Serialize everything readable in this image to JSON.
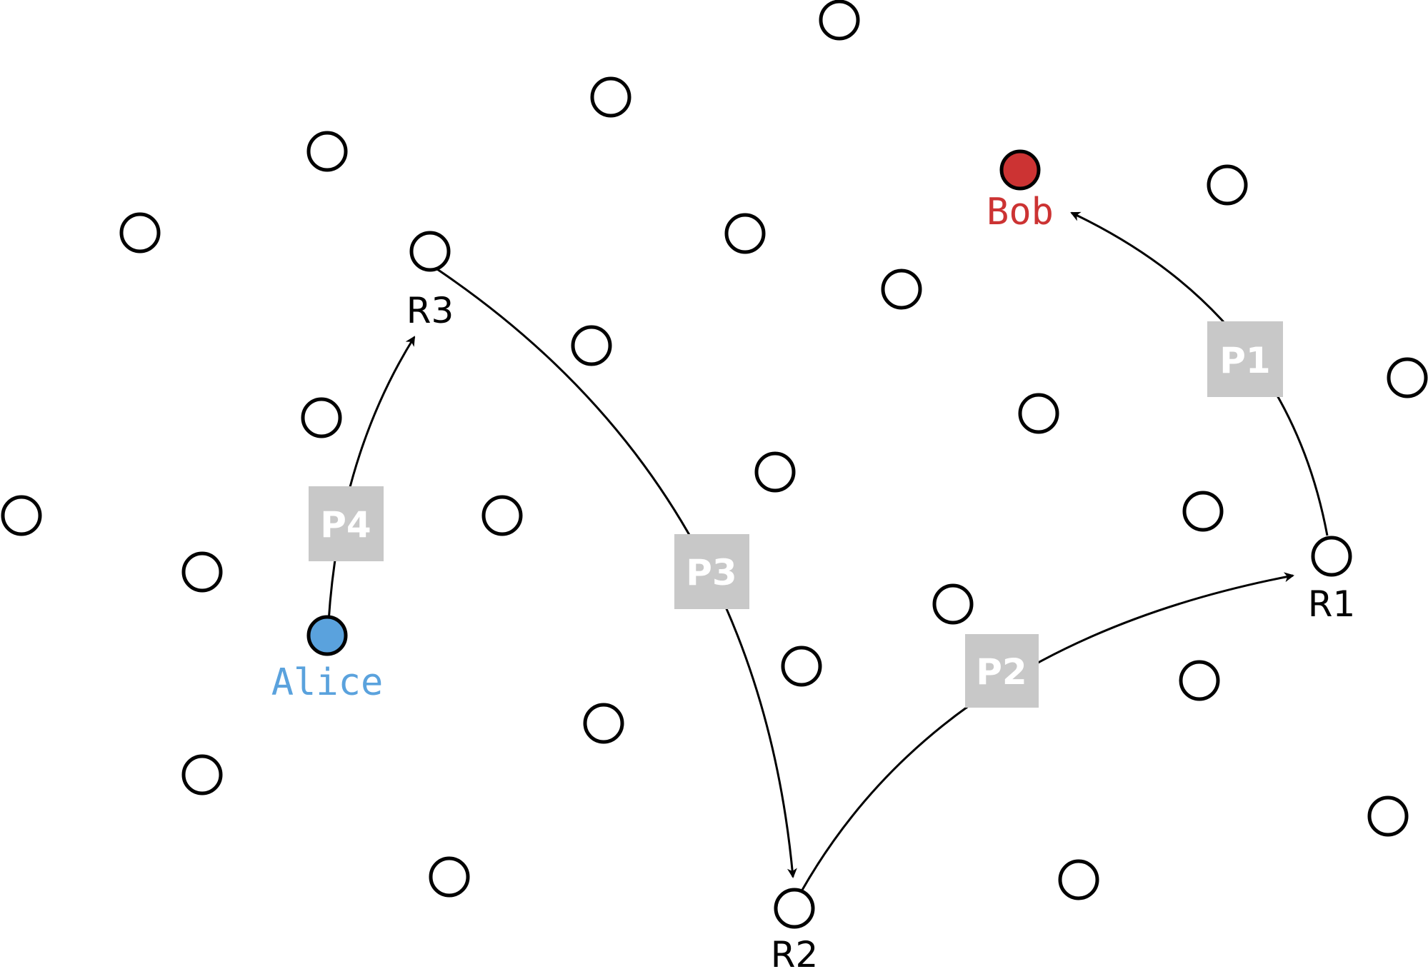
{
  "colors": {
    "alice": "#5aa2dd",
    "bob": "#cc3333",
    "box": "#c8c8c8",
    "box_text": "#ffffff",
    "line": "#000000"
  },
  "endpoints": {
    "alice": {
      "label": "Alice"
    },
    "bob": {
      "label": "Bob"
    }
  },
  "relays": [
    {
      "id": "r1",
      "label": "R1"
    },
    {
      "id": "r2",
      "label": "R2"
    },
    {
      "id": "r3",
      "label": "R3"
    }
  ],
  "paths": [
    {
      "id": "p1",
      "label": "P1"
    },
    {
      "id": "p2",
      "label": "P2"
    },
    {
      "id": "p3",
      "label": "P3"
    },
    {
      "id": "p4",
      "label": "P4"
    }
  ]
}
